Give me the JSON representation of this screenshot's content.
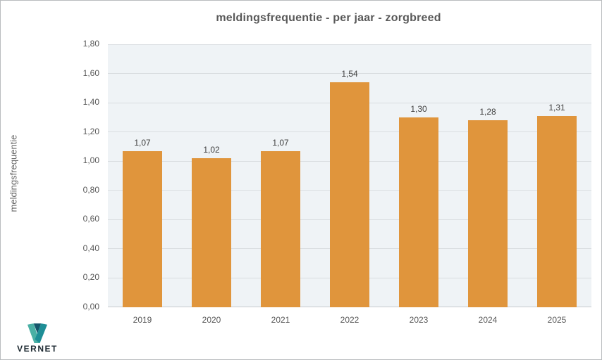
{
  "chart_data": {
    "type": "bar",
    "title": "meldingsfrequentie - per jaar - zorgbreed",
    "ylabel": "meldingsfrequentie",
    "xlabel": "",
    "categories": [
      "2019",
      "2020",
      "2021",
      "2022",
      "2023",
      "2024",
      "2025"
    ],
    "values": [
      1.07,
      1.02,
      1.07,
      1.54,
      1.3,
      1.28,
      1.31
    ],
    "value_labels": [
      "1,07",
      "1,02",
      "1,07",
      "1,54",
      "1,30",
      "1,28",
      "1,31"
    ],
    "ylim": [
      0.0,
      1.8
    ],
    "ytick_step": 0.2,
    "ytick_labels": [
      "0,00",
      "0,20",
      "0,40",
      "0,60",
      "0,80",
      "1,00",
      "1,20",
      "1,40",
      "1,60",
      "1,80"
    ],
    "grid": true,
    "legend": "none",
    "colors": {
      "bar": "#e0953c",
      "plot_background": "#eff3f6",
      "gridline": "#d9dde0",
      "title_text": "#595959",
      "label_text": "#404040"
    }
  },
  "branding": {
    "logo_text": "VERNET",
    "logo_mark": "vernet-v-mark-icon",
    "logo_colors": {
      "left_limb": "#4ab0a5",
      "middle_wedge": "#14566b",
      "right_limb": "#1e8e96"
    }
  }
}
